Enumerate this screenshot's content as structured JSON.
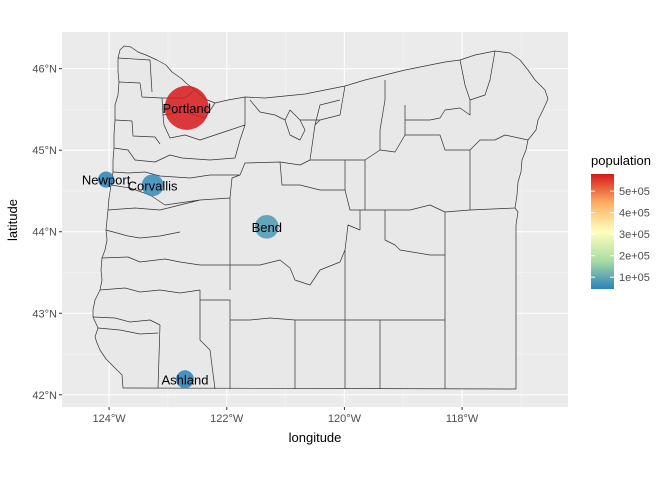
{
  "chart_data": {
    "type": "map-bubble",
    "title": "",
    "xlabel": "longitude",
    "ylabel": "latitude",
    "xlim": [
      -124.8,
      -116.2
    ],
    "ylim": [
      41.85,
      46.45
    ],
    "x_ticks": [
      {
        "value": -124,
        "label": "124°W"
      },
      {
        "value": -122,
        "label": "122°W"
      },
      {
        "value": -120,
        "label": "120°W"
      },
      {
        "value": -118,
        "label": "118°W"
      }
    ],
    "y_ticks": [
      {
        "value": 42,
        "label": "42°N"
      },
      {
        "value": 43,
        "label": "43°N"
      },
      {
        "value": 44,
        "label": "44°N"
      },
      {
        "value": 45,
        "label": "45°N"
      },
      {
        "value": 46,
        "label": "46°N"
      }
    ],
    "grid": true,
    "legend": {
      "title": "population",
      "position": "right",
      "range": [
        45000,
        580000
      ],
      "ticks": [
        {
          "value": 100000,
          "label": "1e+05"
        },
        {
          "value": 200000,
          "label": "2e+05"
        },
        {
          "value": 300000,
          "label": "3e+05"
        },
        {
          "value": 400000,
          "label": "4e+05"
        },
        {
          "value": 500000,
          "label": "5e+05"
        }
      ],
      "colors": [
        "#2b83ba",
        "#abdda4",
        "#ffffbf",
        "#fdae61",
        "#d7191c"
      ]
    },
    "points": [
      {
        "name": "Portland",
        "lon": -122.68,
        "lat": 45.52,
        "population": 583000
      },
      {
        "name": "Newport",
        "lon": -124.05,
        "lat": 44.64,
        "population": 10000
      },
      {
        "name": "Corvallis",
        "lon": -123.26,
        "lat": 44.57,
        "population": 55000
      },
      {
        "name": "Bend",
        "lon": -121.32,
        "lat": 44.06,
        "population": 77000
      },
      {
        "name": "Ashland",
        "lon": -122.71,
        "lat": 42.19,
        "population": 20000
      }
    ]
  },
  "colors": {
    "panel_bg": "#ebebeb",
    "grid": "#ffffff",
    "county_fill": "#e8e8e8",
    "county_stroke": "#333333"
  }
}
